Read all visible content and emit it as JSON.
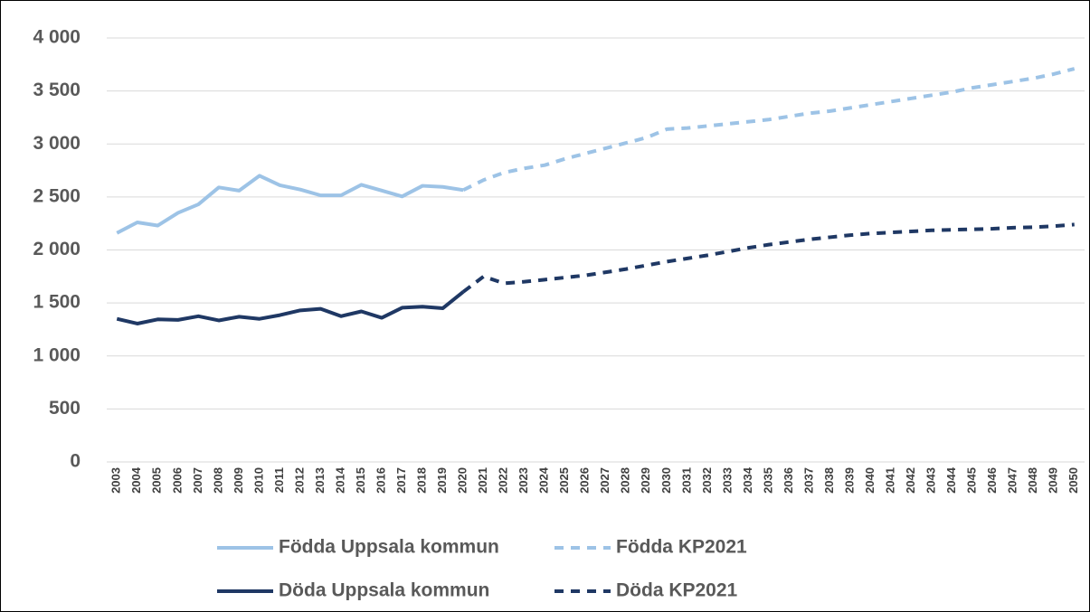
{
  "chart_data": {
    "type": "line",
    "categories": [
      "2003",
      "2004",
      "2005",
      "2006",
      "2007",
      "2008",
      "2009",
      "2010",
      "2011",
      "2012",
      "2013",
      "2014",
      "2015",
      "2016",
      "2017",
      "2018",
      "2019",
      "2020",
      "2021",
      "2022",
      "2023",
      "2024",
      "2025",
      "2026",
      "2027",
      "2028",
      "2029",
      "2030",
      "2031",
      "2032",
      "2033",
      "2034",
      "2035",
      "2036",
      "2037",
      "2038",
      "2039",
      "2040",
      "2041",
      "2042",
      "2043",
      "2044",
      "2045",
      "2046",
      "2047",
      "2048",
      "2049",
      "2050"
    ],
    "series": [
      {
        "name": "Födda Uppsala kommun",
        "color": "#9dc3e6",
        "dashed": false,
        "values": [
          2160,
          2260,
          2230,
          2350,
          2430,
          2590,
          2560,
          2700,
          2610,
          2570,
          2515,
          2515,
          2615,
          2560,
          2505,
          2605,
          2595,
          2565,
          null,
          null,
          null,
          null,
          null,
          null,
          null,
          null,
          null,
          null,
          null,
          null,
          null,
          null,
          null,
          null,
          null,
          null,
          null,
          null,
          null,
          null,
          null,
          null,
          null,
          null,
          null,
          null,
          null,
          null
        ]
      },
      {
        "name": "Födda KP2021",
        "color": "#9dc3e6",
        "dashed": true,
        "values": [
          null,
          null,
          null,
          null,
          null,
          null,
          null,
          null,
          null,
          null,
          null,
          null,
          null,
          null,
          null,
          null,
          null,
          2565,
          2660,
          2730,
          2770,
          2800,
          2860,
          2910,
          2960,
          3010,
          3060,
          3140,
          3150,
          3170,
          3190,
          3210,
          3230,
          3260,
          3290,
          3310,
          3340,
          3370,
          3400,
          3430,
          3460,
          3490,
          3530,
          3560,
          3590,
          3620,
          3660,
          3710
        ]
      },
      {
        "name": "Döda Uppsala kommun",
        "color": "#1f3864",
        "dashed": false,
        "values": [
          1350,
          1305,
          1345,
          1340,
          1375,
          1335,
          1370,
          1350,
          1385,
          1430,
          1445,
          1375,
          1420,
          1360,
          1455,
          1465,
          1450,
          1605,
          null,
          null,
          null,
          null,
          null,
          null,
          null,
          null,
          null,
          null,
          null,
          null,
          null,
          null,
          null,
          null,
          null,
          null,
          null,
          null,
          null,
          null,
          null,
          null,
          null,
          null,
          null,
          null,
          null,
          null
        ]
      },
      {
        "name": "Döda KP2021",
        "color": "#1f3864",
        "dashed": true,
        "values": [
          null,
          null,
          null,
          null,
          null,
          null,
          null,
          null,
          null,
          null,
          null,
          null,
          null,
          null,
          null,
          null,
          null,
          1605,
          1750,
          1685,
          1700,
          1720,
          1740,
          1760,
          1790,
          1820,
          1855,
          1890,
          1920,
          1950,
          1985,
          2020,
          2050,
          2075,
          2100,
          2120,
          2140,
          2155,
          2165,
          2175,
          2185,
          2190,
          2195,
          2200,
          2210,
          2215,
          2225,
          2240
        ]
      }
    ],
    "ylim": [
      0,
      4000
    ],
    "yticks": [
      0,
      500,
      {
        "value": 1000,
        "label": "1 000"
      },
      {
        "value": 1500,
        "label": "1 500"
      },
      {
        "value": 2000,
        "label": "2 000"
      },
      {
        "value": 2500,
        "label": "2 500"
      },
      {
        "value": 3000,
        "label": "3 000"
      },
      {
        "value": 3500,
        "label": "3 500"
      },
      {
        "value": 4000,
        "label": "4 000"
      }
    ],
    "grid": true
  }
}
